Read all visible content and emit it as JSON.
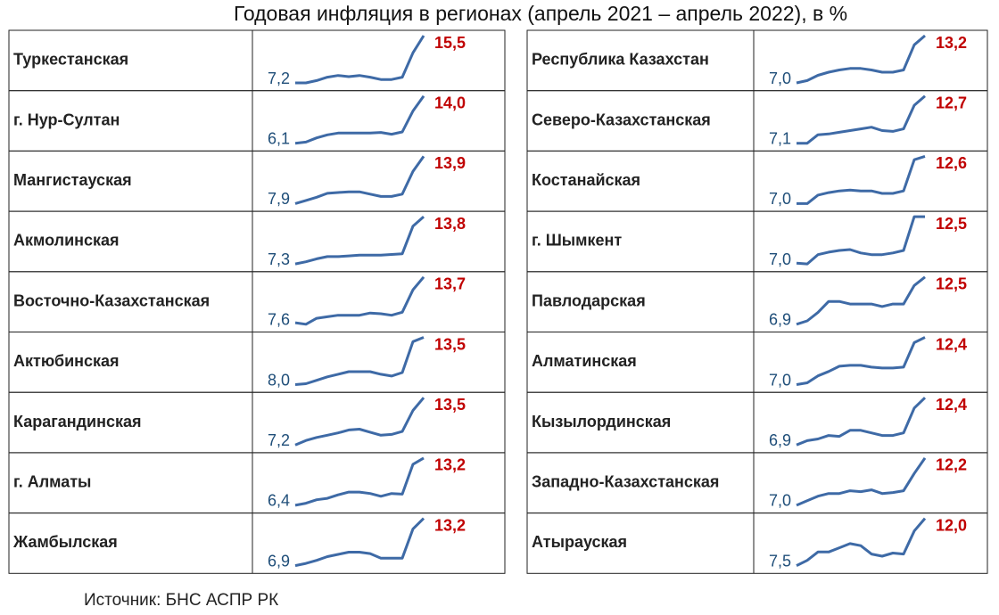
{
  "title": "Годовая инфляция в регионах (апрель 2021 – апрель 2022), в %",
  "source": "Источник: БНС АСПР РК",
  "tables": [
    {
      "rows": [
        {
          "name": "Туркестанская",
          "values": [
            7.2,
            7.2,
            7.6,
            8.2,
            8.5,
            8.3,
            8.5,
            8.2,
            7.8,
            7.8,
            8.2,
            12.5,
            15.5
          ],
          "first_label": "7,2",
          "last_label": "15,5"
        },
        {
          "name": "г. Нур-Султан",
          "values": [
            6.1,
            6.3,
            7.0,
            7.5,
            7.8,
            7.8,
            7.8,
            7.8,
            7.9,
            7.6,
            8.0,
            11.5,
            14.0
          ],
          "first_label": "6,1",
          "last_label": "14,0"
        },
        {
          "name": "Мангистауская",
          "values": [
            7.9,
            8.3,
            8.7,
            9.2,
            9.3,
            9.4,
            9.4,
            9.1,
            8.8,
            8.8,
            9.1,
            12.0,
            13.9
          ],
          "first_label": "7,9",
          "last_label": "13,9"
        },
        {
          "name": "Акмолинская",
          "values": [
            7.3,
            7.6,
            8.0,
            8.3,
            8.3,
            8.4,
            8.5,
            8.5,
            8.5,
            8.6,
            8.7,
            12.5,
            13.8
          ],
          "first_label": "7,3",
          "last_label": "13,8"
        },
        {
          "name": "Восточно-Казахстанская",
          "values": [
            7.6,
            7.4,
            8.2,
            8.4,
            8.6,
            8.6,
            8.6,
            8.9,
            8.8,
            8.6,
            9.0,
            12.0,
            13.7
          ],
          "first_label": "7,6",
          "last_label": "13,7"
        },
        {
          "name": "Актюбинская",
          "values": [
            8.0,
            8.1,
            8.5,
            8.9,
            9.2,
            9.5,
            9.5,
            9.5,
            9.2,
            9.0,
            9.4,
            13.0,
            13.5
          ],
          "first_label": "8,0",
          "last_label": "13,5"
        },
        {
          "name": "Карагандинская",
          "values": [
            7.2,
            7.8,
            8.2,
            8.5,
            8.8,
            9.2,
            9.3,
            8.9,
            8.5,
            8.6,
            9.0,
            11.8,
            13.5
          ],
          "first_label": "7,2",
          "last_label": "13,5"
        },
        {
          "name": "г. Алматы",
          "values": [
            6.4,
            6.7,
            7.2,
            7.4,
            7.9,
            8.3,
            8.3,
            8.1,
            7.7,
            8.1,
            8.0,
            12.3,
            13.2
          ],
          "first_label": "6,4",
          "last_label": "13,2"
        },
        {
          "name": "Жамбылская",
          "values": [
            6.9,
            7.2,
            7.6,
            8.1,
            8.4,
            8.7,
            8.7,
            8.5,
            7.9,
            7.9,
            7.9,
            11.8,
            13.2
          ],
          "first_label": "6,9",
          "last_label": "13,2"
        }
      ]
    },
    {
      "rows": [
        {
          "name": "Республика Казахстан",
          "highlight": true,
          "values": [
            7.0,
            7.3,
            8.0,
            8.4,
            8.7,
            8.9,
            8.9,
            8.7,
            8.4,
            8.4,
            8.7,
            12.0,
            13.2
          ],
          "first_label": "7,0",
          "last_label": "13,2"
        },
        {
          "name": "Северо-Казахстанская",
          "values": [
            7.1,
            7.1,
            8.1,
            8.2,
            8.4,
            8.6,
            8.8,
            9.0,
            8.6,
            8.5,
            8.8,
            11.6,
            12.7
          ],
          "first_label": "7,1",
          "last_label": "12,7"
        },
        {
          "name": "Костанайская",
          "values": [
            7.0,
            7.0,
            8.0,
            8.3,
            8.5,
            8.6,
            8.5,
            8.5,
            8.2,
            8.2,
            8.5,
            12.2,
            12.6
          ],
          "first_label": "7,0",
          "last_label": "12,6"
        },
        {
          "name": "г. Шымкент",
          "values": [
            7.0,
            6.9,
            8.0,
            8.3,
            8.5,
            8.6,
            8.2,
            8.0,
            8.0,
            8.2,
            8.5,
            12.5,
            12.5
          ],
          "first_label": "7,0",
          "last_label": "12,5"
        },
        {
          "name": "Павлодарская",
          "values": [
            6.9,
            7.3,
            8.3,
            9.6,
            9.6,
            9.3,
            9.3,
            9.3,
            9.0,
            9.3,
            9.3,
            11.5,
            12.5
          ],
          "first_label": "6,9",
          "last_label": "12,5"
        },
        {
          "name": "Алматинская",
          "values": [
            7.0,
            7.2,
            8.0,
            8.5,
            9.1,
            9.2,
            9.2,
            9.0,
            8.9,
            8.9,
            9.0,
            11.8,
            12.4
          ],
          "first_label": "7,0",
          "last_label": "12,4"
        },
        {
          "name": "Кызылординская",
          "values": [
            6.9,
            7.4,
            7.6,
            8.0,
            7.9,
            8.6,
            8.6,
            8.3,
            8.0,
            8.0,
            8.3,
            11.2,
            12.4
          ],
          "first_label": "6,9",
          "last_label": "12,4"
        },
        {
          "name": "Западно-Казахстанская",
          "values": [
            7.0,
            7.5,
            8.0,
            8.3,
            8.3,
            8.6,
            8.5,
            8.7,
            8.3,
            8.4,
            8.6,
            10.5,
            12.2
          ],
          "first_label": "7,0",
          "last_label": "12,2"
        },
        {
          "name": "Атырауская",
          "values": [
            7.5,
            8.0,
            8.8,
            8.8,
            9.2,
            9.6,
            9.4,
            8.6,
            8.4,
            8.7,
            8.6,
            10.8,
            12.0
          ],
          "first_label": "7,5",
          "last_label": "12,0"
        }
      ]
    }
  ]
}
